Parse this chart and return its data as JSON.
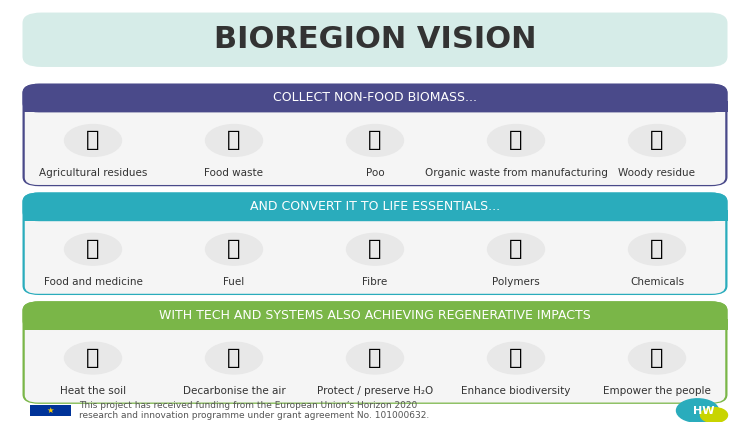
{
  "title": "BIOREGION VISION",
  "title_bg": "#d6ece8",
  "title_color": "#333333",
  "title_fontsize": 22,
  "section1_header": "COLLECT NON-FOOD BIOMASS...",
  "section1_header_bg": "#4a4a8a",
  "section1_header_color": "#ffffff",
  "section1_bg": "#f5f5f5",
  "section1_border": "#4a4a8a",
  "section1_items": [
    "Agricultural residues",
    "Food waste",
    "Poo",
    "Organic waste from manufacturing",
    "Woody residue"
  ],
  "section1_icons": [
    "🐄",
    "🌿",
    "💩",
    "🏭",
    "🌳"
  ],
  "section2_header": "AND CONVERT IT TO LIFE ESSENTIALS...",
  "section2_header_bg": "#2aacbc",
  "section2_header_color": "#ffffff",
  "section2_bg": "#f5f5f5",
  "section2_border": "#2aacbc",
  "section2_items": [
    "Food and medicine",
    "Fuel",
    "Fibre",
    "Polymers",
    "Chemicals"
  ],
  "section2_icons": [
    "🍜",
    "⛽",
    "👕",
    "👜",
    "🧪"
  ],
  "section3_header": "WITH TECH AND SYSTEMS ALSO ACHIEVING REGENERATIVE IMPACTS",
  "section3_header_bg": "#7ab648",
  "section3_header_color": "#ffffff",
  "section3_bg": "#f5f5f5",
  "section3_border": "#7ab648",
  "section3_items": [
    "Heat the soil",
    "Decarbonise the air",
    "Protect / preserve H₂O",
    "Enhance biodiversity",
    "Empower the people"
  ],
  "footer_text": "This project has received funding from the European Union’s Horizon 2020\nresearch and innovation programme under grant agreement No. 101000632.",
  "footer_fontsize": 6.5,
  "bg_color": "#ffffff",
  "item_fontsize": 7.5,
  "header_fontsize": 9
}
